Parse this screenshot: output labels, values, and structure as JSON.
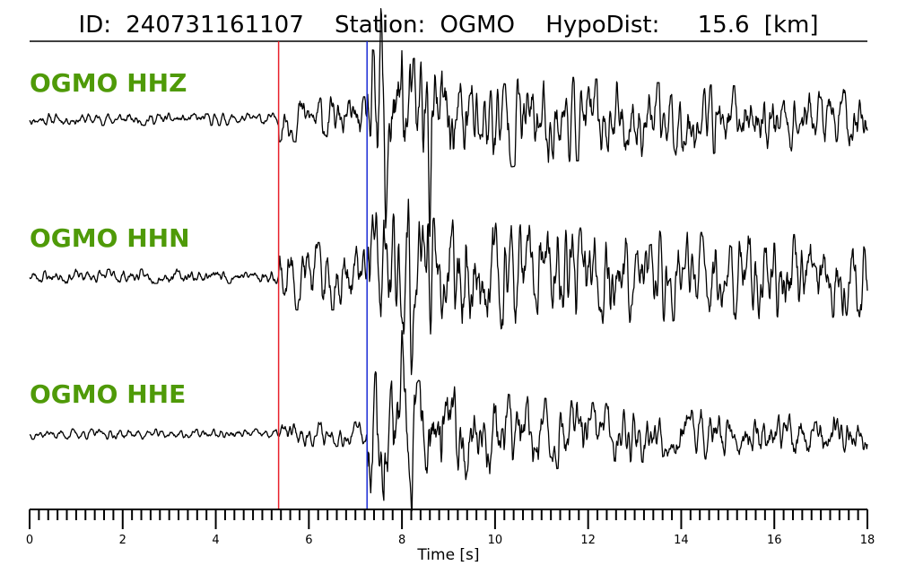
{
  "chart_data": {
    "type": "line",
    "title": {
      "id_label": "ID:",
      "id": "240731161107",
      "station_label": "Station:",
      "station": "OGMO",
      "dist_label": "HypoDist:",
      "dist": "15.6",
      "dist_unit": "[km]"
    },
    "xlabel": "Time [s]",
    "xlim": [
      0,
      18
    ],
    "major_ticks": [
      0,
      2,
      4,
      6,
      8,
      10,
      12,
      14,
      16,
      18
    ],
    "minor_tick_step": 0.2,
    "picks": [
      {
        "phase": "P",
        "time": 5.35,
        "color": "#e8212b"
      },
      {
        "phase": "S",
        "time": 7.25,
        "color": "#1a2bd6"
      }
    ],
    "series": [
      {
        "name": "OGMO HHZ",
        "noise": 0.06,
        "p_amp": 0.22,
        "s_amp": 0.55,
        "seed": 11,
        "spikes": [
          [
            7.48,
            -0.55
          ],
          [
            7.55,
            0.95
          ],
          [
            7.65,
            -1.0
          ],
          [
            8.0,
            0.75
          ],
          [
            8.6,
            -0.85
          ],
          [
            8.42,
            0.6
          ]
        ]
      },
      {
        "name": "OGMO HHN",
        "noise": 0.07,
        "p_amp": 0.33,
        "s_amp": 0.5,
        "seed": 23,
        "spikes": [
          [
            7.36,
            0.7
          ],
          [
            8.2,
            -0.95
          ],
          [
            8.55,
            0.75
          ],
          [
            8.15,
            0.45
          ]
        ]
      },
      {
        "name": "OGMO HHE",
        "noise": 0.05,
        "p_amp": 0.12,
        "s_amp": 0.5,
        "seed": 37,
        "spikes": [
          [
            7.4,
            0.65
          ],
          [
            7.6,
            -0.7
          ],
          [
            8.2,
            -0.95
          ],
          [
            8.0,
            0.55
          ],
          [
            8.85,
            -0.5
          ]
        ]
      }
    ],
    "line_color": "#000000",
    "channel_color": "#4f9a08"
  }
}
